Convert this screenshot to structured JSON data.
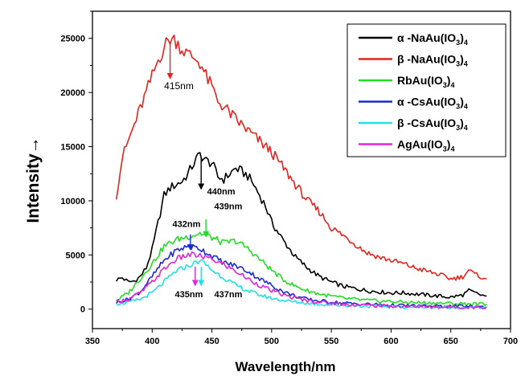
{
  "chart_data": {
    "type": "line",
    "xlabel": "Wavelength/nm",
    "ylabel": "Intensity→",
    "xlim": [
      350,
      700
    ],
    "ylim": [
      -1800,
      27500
    ],
    "xticks": [
      350,
      400,
      450,
      500,
      550,
      600,
      650,
      700
    ],
    "yticks": [
      0,
      5000,
      10000,
      15000,
      20000,
      25000
    ],
    "xtick_labels": [
      "350",
      "400",
      "450",
      "500",
      "550",
      "600",
      "650",
      "700"
    ],
    "ytick_labels": [
      "0",
      "5000",
      "10000",
      "15000",
      "20000",
      "25000"
    ],
    "grid": false,
    "legend_position": "top-right",
    "series": [
      {
        "name_parts": [
          "α -NaAu(IO",
          "3",
          ")",
          "4"
        ],
        "color": "#000000",
        "x": [
          370,
          375,
          380,
          385,
          390,
          395,
          400,
          405,
          410,
          415,
          420,
          425,
          430,
          435,
          440,
          445,
          450,
          455,
          460,
          465,
          470,
          475,
          480,
          485,
          490,
          495,
          500,
          510,
          520,
          530,
          540,
          550,
          560,
          570,
          580,
          590,
          600,
          610,
          620,
          630,
          640,
          650,
          660,
          665,
          670,
          675,
          680
        ],
        "y": [
          2700,
          2900,
          2500,
          2600,
          3000,
          3800,
          5500,
          8000,
          10500,
          11200,
          11500,
          11800,
          12500,
          13500,
          14300,
          13700,
          13500,
          12200,
          12000,
          12500,
          13000,
          12700,
          12300,
          11500,
          10500,
          9500,
          8000,
          6300,
          4800,
          3800,
          3000,
          2500,
          2100,
          1900,
          1700,
          1600,
          1500,
          1500,
          1400,
          1300,
          1200,
          1100,
          1300,
          1700,
          1500,
          1300,
          1200
        ]
      },
      {
        "name_parts": [
          "β -NaAu(IO",
          "3",
          ")",
          "4"
        ],
        "color": "#e8231e",
        "x": [
          370,
          375,
          380,
          385,
          390,
          395,
          400,
          405,
          410,
          415,
          420,
          425,
          430,
          435,
          440,
          445,
          450,
          455,
          460,
          470,
          480,
          490,
          500,
          510,
          520,
          530,
          540,
          550,
          560,
          570,
          580,
          590,
          600,
          610,
          620,
          630,
          640,
          650,
          660,
          665,
          670,
          675,
          680
        ],
        "y": [
          10500,
          14000,
          15500,
          17000,
          18500,
          20000,
          21500,
          23000,
          24200,
          25000,
          24800,
          24000,
          23500,
          23200,
          22800,
          21500,
          20500,
          19200,
          18700,
          17500,
          16500,
          15500,
          14500,
          13000,
          11500,
          10000,
          9000,
          7500,
          6800,
          6000,
          5200,
          4800,
          4500,
          4200,
          3800,
          3500,
          3200,
          2800,
          3000,
          3600,
          3200,
          3000,
          2800
        ]
      },
      {
        "name_parts": [
          "RbAu(IO",
          "3",
          ")",
          "4"
        ],
        "color": "#22dd22",
        "x": [
          370,
          380,
          390,
          400,
          410,
          420,
          430,
          440,
          450,
          460,
          470,
          480,
          490,
          500,
          510,
          520,
          530,
          540,
          550,
          560,
          580,
          600,
          620,
          640,
          660,
          680
        ],
        "y": [
          800,
          1500,
          2800,
          4200,
          5800,
          6400,
          6700,
          7000,
          6600,
          6100,
          6300,
          5600,
          4600,
          3600,
          2700,
          2100,
          1700,
          1400,
          1200,
          1000,
          800,
          700,
          600,
          550,
          500,
          450
        ]
      },
      {
        "name_parts": [
          "α -CsAu(IO",
          "3",
          ")",
          "4"
        ],
        "color": "#1a2acc",
        "x": [
          370,
          380,
          390,
          400,
          410,
          420,
          430,
          440,
          450,
          460,
          470,
          480,
          490,
          500,
          510,
          520,
          530,
          540,
          550,
          560,
          580,
          600,
          620,
          640,
          660,
          680
        ],
        "y": [
          600,
          900,
          1600,
          3000,
          4500,
          5400,
          5800,
          5600,
          4900,
          4300,
          4000,
          3500,
          2800,
          2200,
          1600,
          1200,
          900,
          750,
          650,
          550,
          450,
          350,
          300,
          250,
          250,
          200
        ]
      },
      {
        "name_parts": [
          "β -CsAu(IO",
          "3",
          ")",
          "4"
        ],
        "color": "#22e0e8",
        "x": [
          370,
          380,
          390,
          400,
          410,
          420,
          430,
          435,
          440,
          445,
          450,
          460,
          470,
          480,
          490,
          500,
          510,
          520,
          530,
          540,
          550,
          560,
          580,
          600,
          620,
          640,
          660,
          680
        ],
        "y": [
          500,
          600,
          900,
          1500,
          2500,
          3500,
          4000,
          4200,
          4500,
          4100,
          3600,
          2900,
          2200,
          1700,
          1300,
          1000,
          800,
          650,
          550,
          450,
          400,
          350,
          280,
          220,
          200,
          180,
          170,
          160
        ]
      },
      {
        "name_parts": [
          "AgAu(IO",
          "3",
          ")",
          "4"
        ],
        "color": "#e026d8",
        "x": [
          370,
          380,
          390,
          400,
          410,
          420,
          430,
          435,
          440,
          450,
          460,
          470,
          480,
          490,
          500,
          510,
          520,
          530,
          540,
          550,
          560,
          580,
          600,
          620,
          640,
          660,
          680
        ],
        "y": [
          700,
          900,
          1500,
          2500,
          3700,
          4600,
          5000,
          5000,
          4900,
          4600,
          4100,
          3500,
          2800,
          2200,
          1700,
          1300,
          1000,
          800,
          650,
          550,
          450,
          350,
          280,
          230,
          200,
          180,
          170
        ]
      }
    ],
    "annotations": [
      {
        "text": "415nm",
        "x": 410,
        "y": 20300,
        "color": "#e8231e",
        "arrow_x": 415,
        "arrow_from": 24600,
        "arrow_to": 21500,
        "style": "light"
      },
      {
        "text": "440nm",
        "x": 446,
        "y": 10600,
        "color": "#000000",
        "arrow_x": 441,
        "arrow_from": 14000,
        "arrow_to": 11300,
        "style": "bold"
      },
      {
        "text": "439nm",
        "x": 452,
        "y": 9200,
        "color": "#22dd22",
        "arrow_x": 445,
        "arrow_from": 8300,
        "arrow_to": 6900,
        "style": "bold"
      },
      {
        "text": "432nm",
        "x": 417,
        "y": 7600,
        "color": "#1a2acc",
        "arrow_x": 432,
        "arrow_from": 6900,
        "arrow_to": 5700,
        "style": "bold"
      },
      {
        "text": "435nm",
        "x": 419,
        "y": 1100,
        "color": "#e026d8",
        "arrow_x": 436,
        "arrow_from": 3900,
        "arrow_to": 2400,
        "style": "bold"
      },
      {
        "text": "437nm",
        "x": 452,
        "y": 1100,
        "color": "#22e0e8",
        "arrow_x": 441,
        "arrow_from": 3900,
        "arrow_to": 2400,
        "style": "bold"
      }
    ]
  }
}
